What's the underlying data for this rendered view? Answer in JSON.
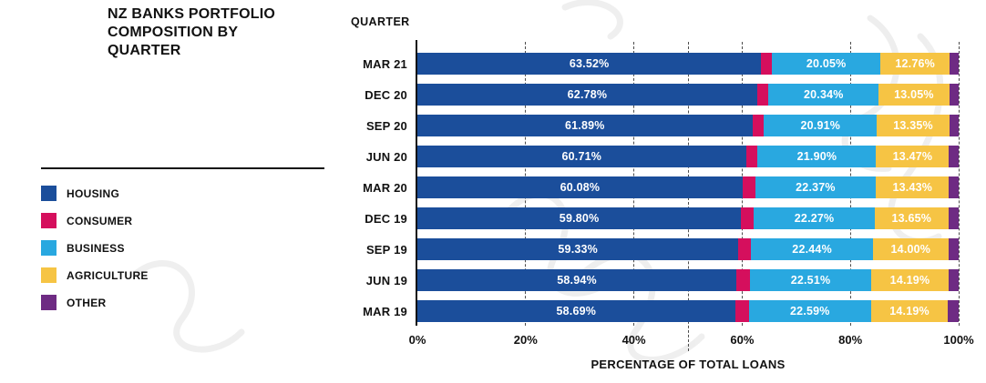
{
  "title": {
    "text": "NZ BANKS PORTFOLIO COMPOSITION BY QUARTER"
  },
  "legend": {
    "items": [
      {
        "label": "HOUSING",
        "color": "#1B4E9B"
      },
      {
        "label": "CONSUMER",
        "color": "#D50F5D"
      },
      {
        "label": "BUSINESS",
        "color": "#29A8E0"
      },
      {
        "label": "AGRICULTURE",
        "color": "#F6C444"
      },
      {
        "label": "OTHER",
        "color": "#6E2B83"
      }
    ]
  },
  "chart_data": {
    "type": "bar",
    "orientation": "horizontal",
    "stacked": true,
    "column_header": "QUARTER",
    "xlabel": "PERCENTAGE OF TOTAL LOANS",
    "x_ticks": [
      "0%",
      "20%",
      "40%",
      "60%",
      "80%",
      "100%"
    ],
    "xlim": [
      0,
      100
    ],
    "dashed_gridline_pct": 50,
    "grid": "dashed vertical ticks at 20% intervals plus 50% reference line",
    "categories": [
      "MAR 21",
      "DEC 20",
      "SEP 20",
      "JUN 20",
      "MAR 20",
      "DEC 19",
      "SEP 19",
      "JUN 19",
      "MAR 19"
    ],
    "series": [
      {
        "name": "HOUSING",
        "color": "#1B4E9B",
        "labels_shown": true,
        "values": [
          63.52,
          62.78,
          61.89,
          60.71,
          60.08,
          59.8,
          59.33,
          58.94,
          58.69
        ]
      },
      {
        "name": "CONSUMER",
        "color": "#D50F5D",
        "labels_shown": false,
        "values_estimated_from_pixels": true,
        "values": [
          2.0,
          2.1,
          2.12,
          2.15,
          2.3,
          2.4,
          2.37,
          2.45,
          2.55
        ]
      },
      {
        "name": "BUSINESS",
        "color": "#29A8E0",
        "labels_shown": true,
        "values": [
          20.05,
          20.34,
          20.91,
          21.9,
          22.37,
          22.27,
          22.44,
          22.51,
          22.59
        ]
      },
      {
        "name": "AGRICULTURE",
        "color": "#F6C444",
        "labels_shown": true,
        "values": [
          12.76,
          13.05,
          13.35,
          13.47,
          13.43,
          13.65,
          14.0,
          14.19,
          14.19
        ]
      },
      {
        "name": "OTHER",
        "color": "#6E2B83",
        "labels_shown": false,
        "values_estimated_from_pixels": true,
        "values": [
          1.67,
          1.73,
          1.73,
          1.77,
          1.82,
          1.88,
          1.86,
          1.91,
          1.98
        ]
      }
    ]
  }
}
